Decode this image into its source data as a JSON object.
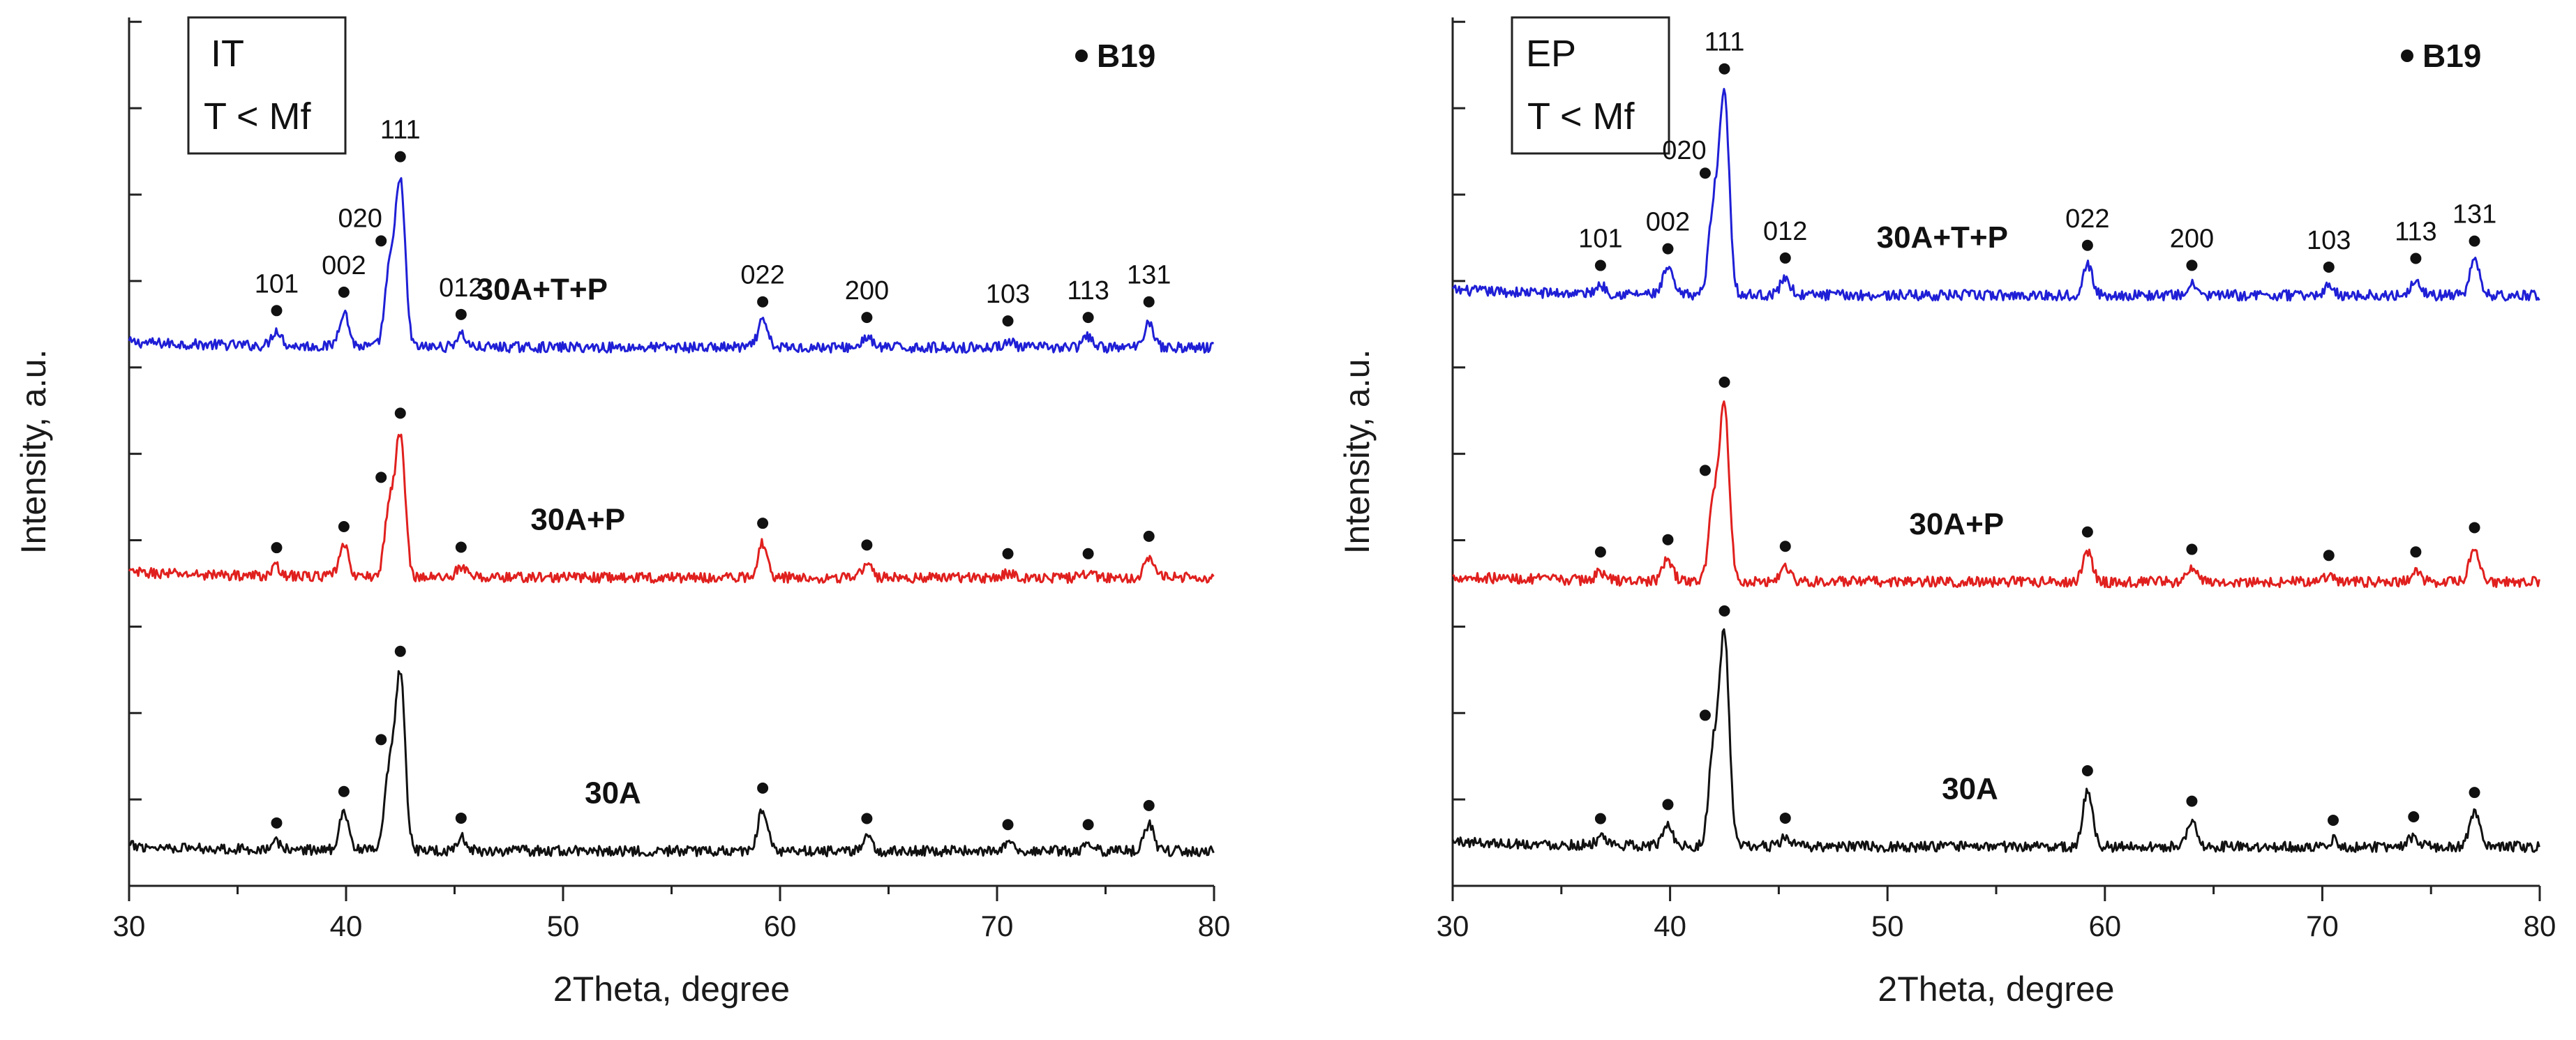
{
  "chart_data": [
    {
      "type": "line",
      "panel": "left",
      "condition_label_line1": "IT",
      "condition_label_line2": "T < Mf",
      "legend_marker_label": "B19",
      "xlabel": "2Theta, degree",
      "ylabel": "Intensity, a.u.",
      "xlim": [
        30,
        80
      ],
      "x_ticks": [
        "30",
        "40",
        "50",
        "60",
        "70",
        "80"
      ],
      "colors": {
        "30A+T+P": "#1f1fd6",
        "30A+P": "#e0201e",
        "30A": "#111111"
      },
      "series": [
        {
          "name": "30A+T+P",
          "baseline": 0.62,
          "label": "30A+T+P",
          "label_x": 46.0,
          "peaks": [
            {
              "x": 36.8,
              "h": 0.018,
              "hkl": "101"
            },
            {
              "x": 39.9,
              "h": 0.04,
              "hkl": "002"
            },
            {
              "x": 42.0,
              "h": 0.085,
              "hkl": "020"
            },
            {
              "x": 42.5,
              "h": 0.19,
              "hkl": "111"
            },
            {
              "x": 45.3,
              "h": 0.015,
              "hkl": "012"
            },
            {
              "x": 59.2,
              "h": 0.03,
              "hkl": "022"
            },
            {
              "x": 64.0,
              "h": 0.012,
              "hkl": "200"
            },
            {
              "x": 70.5,
              "h": 0.008,
              "hkl": "103"
            },
            {
              "x": 74.2,
              "h": 0.012,
              "hkl": "113"
            },
            {
              "x": 77.0,
              "h": 0.03,
              "hkl": "131"
            }
          ]
        },
        {
          "name": "30A+P",
          "baseline": 0.355,
          "label": "30A+P",
          "label_x": 48.5,
          "peaks": [
            {
              "x": 36.8,
              "h": 0.01
            },
            {
              "x": 39.9,
              "h": 0.035
            },
            {
              "x": 42.0,
              "h": 0.08
            },
            {
              "x": 42.5,
              "h": 0.16
            },
            {
              "x": 45.3,
              "h": 0.012
            },
            {
              "x": 59.2,
              "h": 0.04
            },
            {
              "x": 64.0,
              "h": 0.015
            },
            {
              "x": 70.5,
              "h": 0.005
            },
            {
              "x": 74.2,
              "h": 0.005
            },
            {
              "x": 77.0,
              "h": 0.025
            }
          ]
        },
        {
          "name": "30A",
          "baseline": 0.04,
          "label": "30A",
          "label_x": 51.0,
          "peaks": [
            {
              "x": 36.8,
              "h": 0.008
            },
            {
              "x": 39.9,
              "h": 0.045
            },
            {
              "x": 42.0,
              "h": 0.09
            },
            {
              "x": 42.5,
              "h": 0.2
            },
            {
              "x": 45.3,
              "h": 0.015
            },
            {
              "x": 59.2,
              "h": 0.05
            },
            {
              "x": 64.0,
              "h": 0.015
            },
            {
              "x": 70.5,
              "h": 0.008
            },
            {
              "x": 74.2,
              "h": 0.008
            },
            {
              "x": 77.0,
              "h": 0.03
            }
          ]
        }
      ]
    },
    {
      "type": "line",
      "panel": "right",
      "condition_label_line1": "EP",
      "condition_label_line2": "T < Mf",
      "legend_marker_label": "B19",
      "xlabel": "2Theta, degree",
      "ylabel": "Intensity, a.u.",
      "xlim": [
        30,
        80
      ],
      "x_ticks": [
        "30",
        "40",
        "50",
        "60",
        "70",
        "80"
      ],
      "colors": {
        "30A+T+P": "#1f1fd6",
        "30A+P": "#e0201e",
        "30A": "#111111"
      },
      "series": [
        {
          "name": "30A+T+P",
          "baseline": 0.68,
          "label": "30A+T+P",
          "label_x": 49.5,
          "peaks": [
            {
              "x": 36.8,
              "h": 0.01,
              "hkl": "101"
            },
            {
              "x": 39.9,
              "h": 0.03,
              "hkl": "002"
            },
            {
              "x": 42.0,
              "h": 0.1,
              "hkl": "020"
            },
            {
              "x": 42.5,
              "h": 0.23,
              "hkl": "111"
            },
            {
              "x": 45.3,
              "h": 0.02,
              "hkl": "012"
            },
            {
              "x": 59.2,
              "h": 0.035,
              "hkl": "022"
            },
            {
              "x": 64.0,
              "h": 0.012,
              "hkl": "200"
            },
            {
              "x": 70.3,
              "h": 0.01,
              "hkl": "103"
            },
            {
              "x": 74.3,
              "h": 0.02,
              "hkl": "113"
            },
            {
              "x": 77.0,
              "h": 0.04,
              "hkl": "131"
            }
          ]
        },
        {
          "name": "30A+P",
          "baseline": 0.35,
          "label": "30A+P",
          "label_x": 51.0,
          "peaks": [
            {
              "x": 36.8,
              "h": 0.01
            },
            {
              "x": 39.9,
              "h": 0.025
            },
            {
              "x": 42.0,
              "h": 0.09
            },
            {
              "x": 42.5,
              "h": 0.2
            },
            {
              "x": 45.3,
              "h": 0.018
            },
            {
              "x": 59.2,
              "h": 0.035
            },
            {
              "x": 64.0,
              "h": 0.015
            },
            {
              "x": 70.3,
              "h": 0.008
            },
            {
              "x": 74.3,
              "h": 0.012
            },
            {
              "x": 77.0,
              "h": 0.04
            }
          ]
        },
        {
          "name": "30A",
          "baseline": 0.045,
          "label": "30A",
          "label_x": 52.5,
          "peaks": [
            {
              "x": 36.8,
              "h": 0.008
            },
            {
              "x": 39.9,
              "h": 0.025
            },
            {
              "x": 42.0,
              "h": 0.11
            },
            {
              "x": 42.5,
              "h": 0.24
            },
            {
              "x": 45.3,
              "h": 0.01
            },
            {
              "x": 59.2,
              "h": 0.065
            },
            {
              "x": 64.0,
              "h": 0.03
            },
            {
              "x": 70.5,
              "h": 0.008
            },
            {
              "x": 74.2,
              "h": 0.012
            },
            {
              "x": 77.0,
              "h": 0.04
            }
          ]
        }
      ]
    }
  ]
}
